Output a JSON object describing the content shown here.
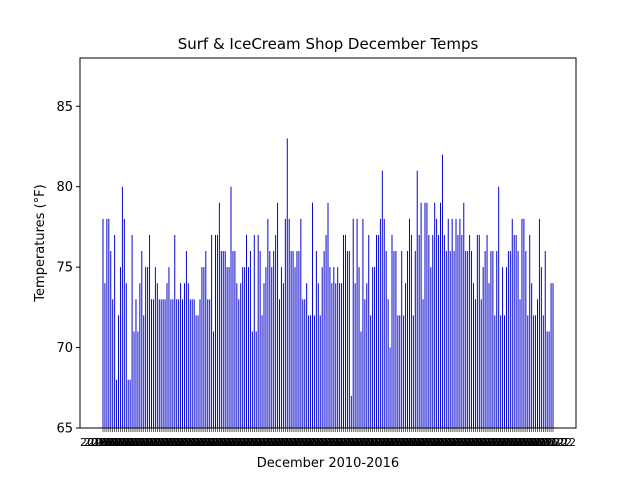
{
  "chart_data": {
    "type": "bar",
    "title": "Surf & IceCream Shop December Temps",
    "xlabel": "December 2010-2016",
    "ylabel": "Temperatures (°F)",
    "ylim": [
      65,
      88
    ],
    "yticks": [
      65,
      70,
      75,
      80,
      85
    ],
    "grid": false,
    "bar_color": "#0000cc",
    "x_tick_labels_note": "dense overlapping date labels",
    "values": [
      78,
      74,
      78,
      78,
      76,
      73,
      77,
      68,
      72,
      75,
      80,
      78,
      74,
      68,
      68,
      77,
      71,
      73,
      71,
      74,
      76,
      72,
      75,
      75,
      77,
      73,
      73,
      75,
      74,
      73,
      73,
      73,
      73,
      74,
      75,
      73,
      73,
      77,
      73,
      73,
      74,
      73,
      74,
      76,
      74,
      73,
      73,
      73,
      72,
      72,
      73,
      75,
      75,
      76,
      73,
      73,
      77,
      71,
      77,
      77,
      79,
      76,
      76,
      76,
      75,
      75,
      80,
      76,
      76,
      74,
      73,
      74,
      75,
      75,
      77,
      75,
      76,
      71,
      77,
      71,
      77,
      76,
      72,
      74,
      75,
      78,
      76,
      75,
      76,
      77,
      79,
      73,
      75,
      74,
      78,
      83,
      78,
      76,
      76,
      75,
      76,
      76,
      78,
      73,
      73,
      74,
      72,
      72,
      79,
      72,
      76,
      74,
      72,
      75,
      76,
      77,
      79,
      75,
      74,
      75,
      74,
      75,
      74,
      74,
      77,
      77,
      76,
      76,
      67,
      78,
      74,
      78,
      75,
      71,
      78,
      73,
      74,
      77,
      72,
      75,
      75,
      77,
      77,
      78,
      81,
      78,
      76,
      73,
      70,
      77,
      76,
      76,
      72,
      72,
      76,
      72,
      74,
      76,
      78,
      77,
      72,
      76,
      81,
      77,
      79,
      73,
      79,
      79,
      77,
      75,
      77,
      79,
      78,
      77,
      79,
      82,
      77,
      76,
      78,
      76,
      78,
      76,
      78,
      77,
      78,
      77,
      79,
      76,
      76,
      77,
      76,
      74,
      73,
      77,
      77,
      73,
      75,
      76,
      77,
      74,
      76,
      76,
      72,
      76,
      80,
      72,
      75,
      72,
      75,
      76,
      76,
      78,
      77,
      77,
      76,
      73,
      78,
      78,
      76,
      72,
      77,
      74,
      72,
      72,
      73,
      78,
      75,
      72,
      76,
      71,
      71,
      74,
      74
    ]
  }
}
